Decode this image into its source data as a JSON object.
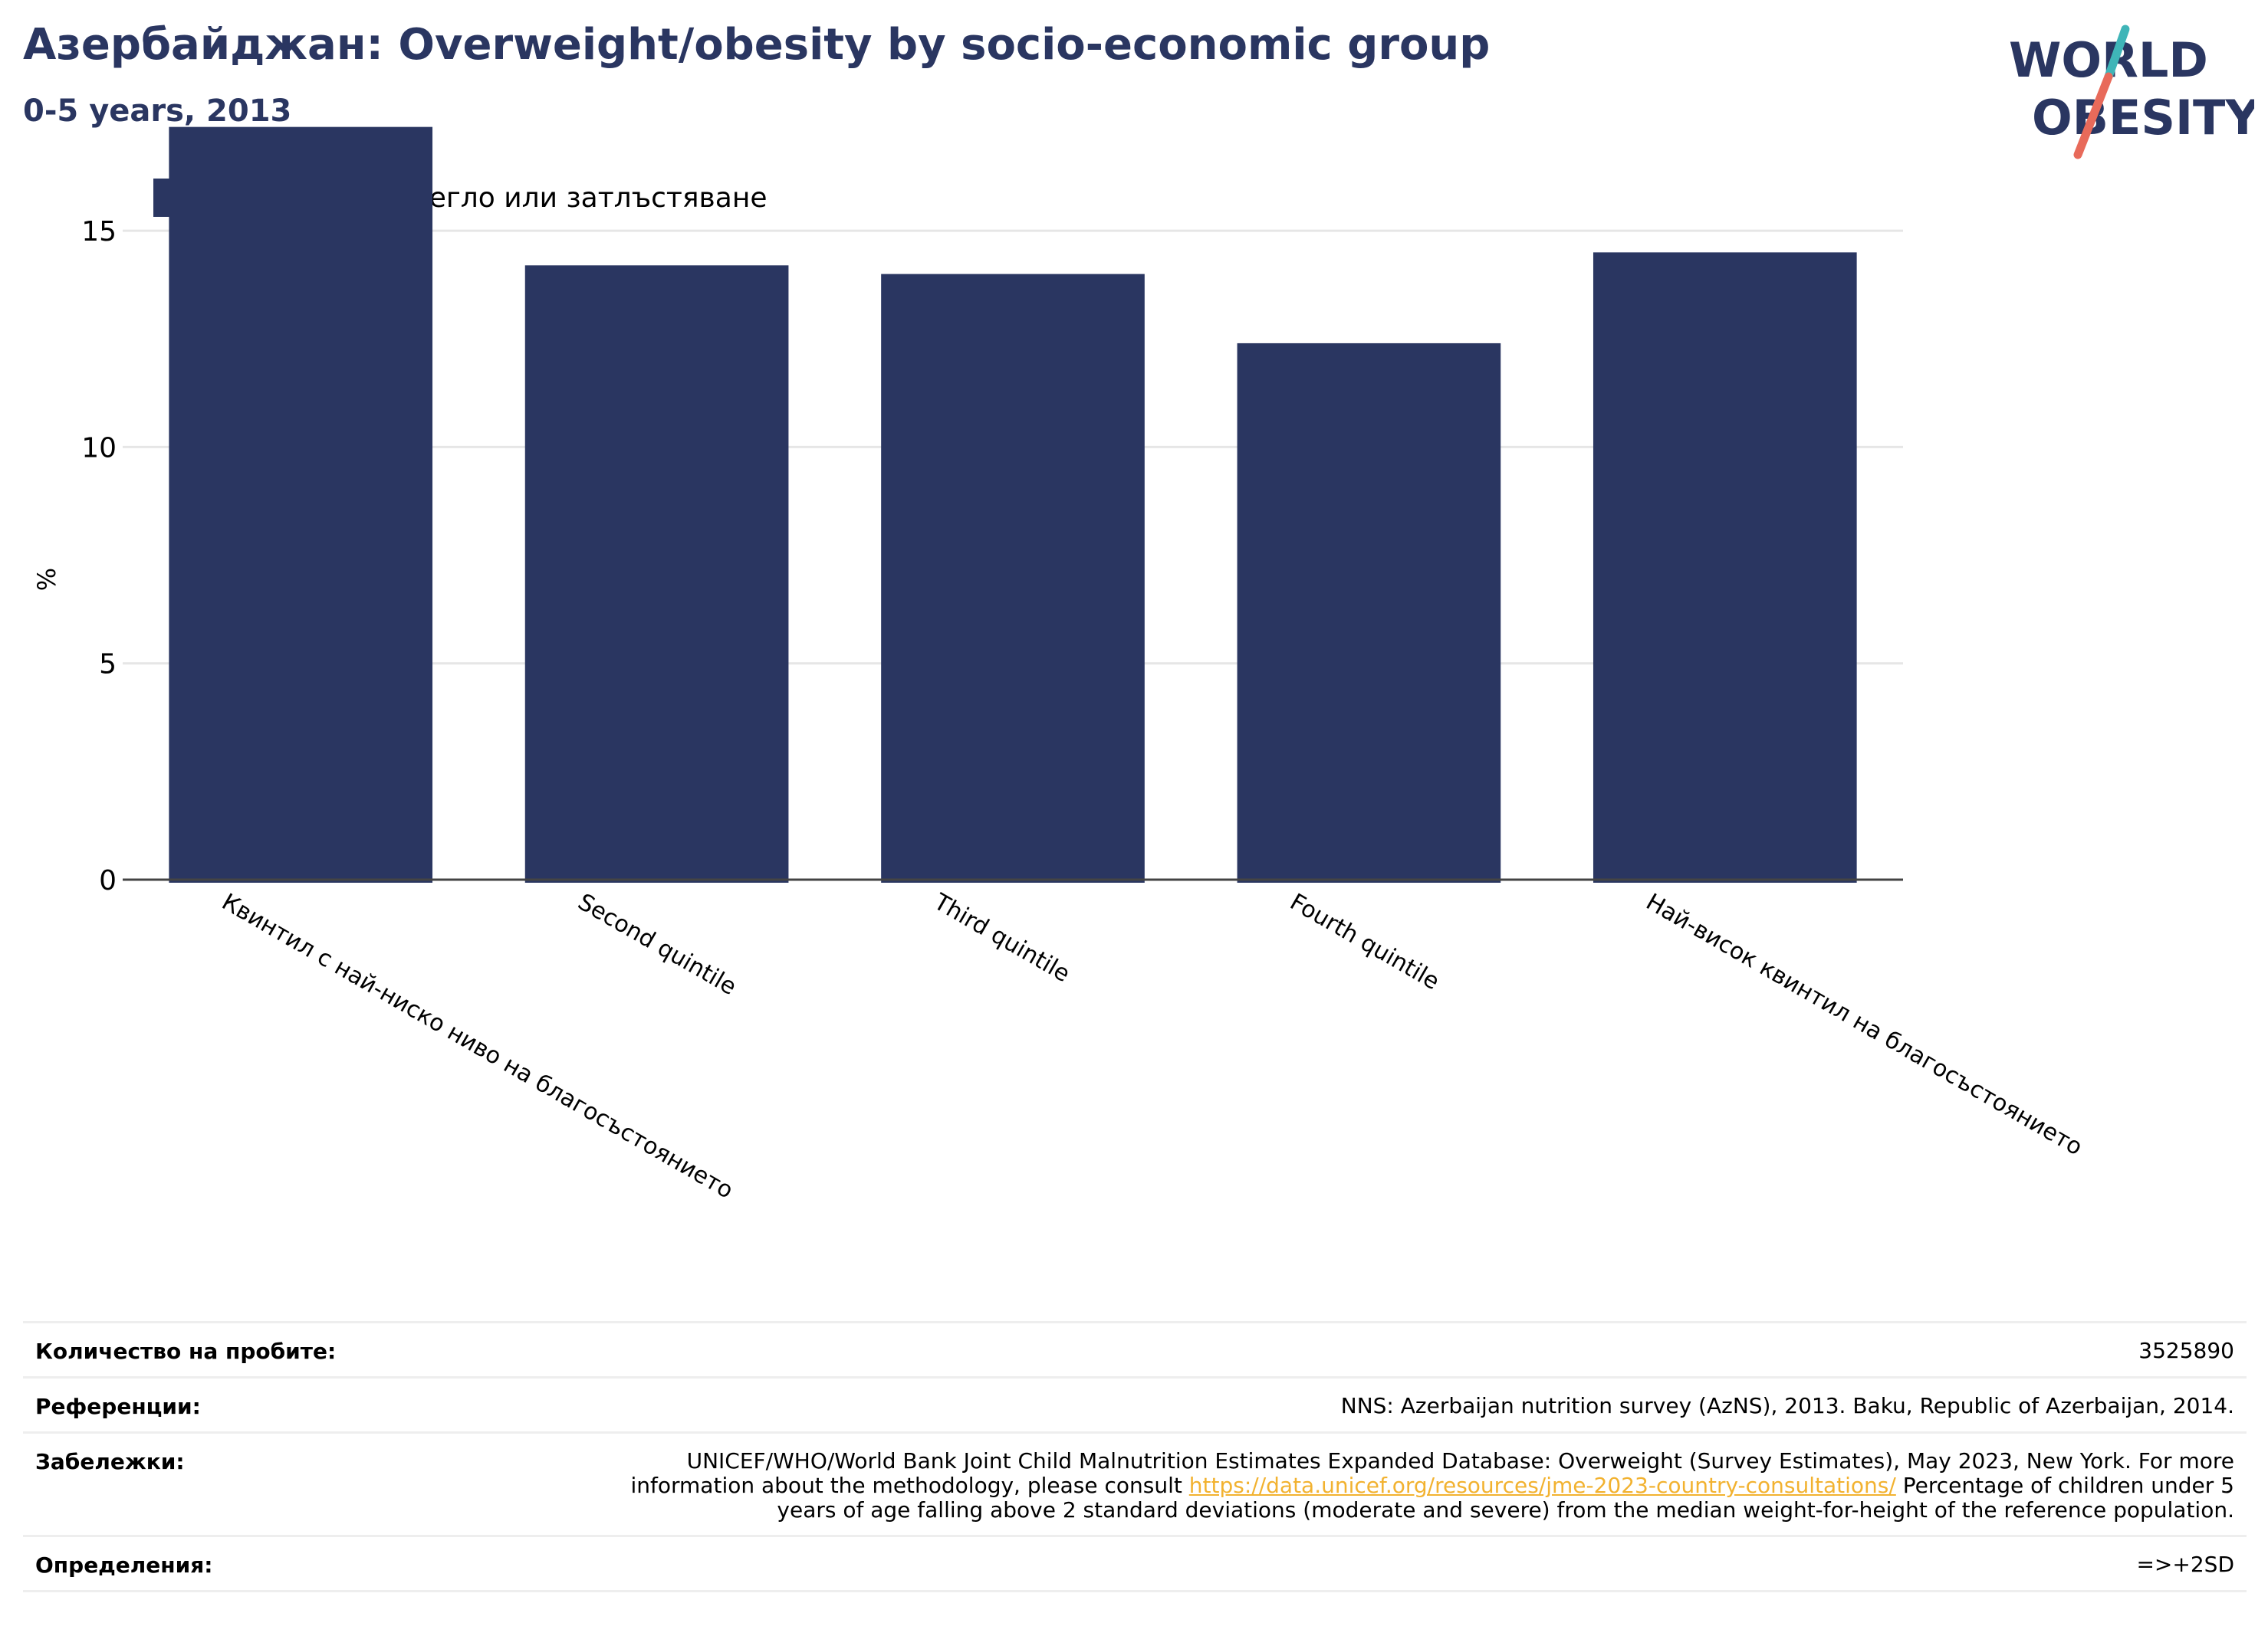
{
  "header": {
    "title": "Азербайджан: Overweight/obesity by socio-economic group",
    "subtitle": "0-5 years, 2013"
  },
  "logo": {
    "line1": "WORLD",
    "line2": "OBESITY",
    "text_color": "#2a3661",
    "accent_teal": "#3fb5b8",
    "accent_coral": "#e86a5a"
  },
  "colors": {
    "bar": "#2a3661",
    "grid": "#e6e6e6",
    "axis": "#444444",
    "link": "#f2b230"
  },
  "chart_data": {
    "type": "bar",
    "ylabel": "%",
    "ylim": [
      0,
      17.5
    ],
    "yticks": [
      0,
      5,
      10,
      15
    ],
    "grid": true,
    "legend": {
      "position": "top-left",
      "entries": [
        "Наднормено тегло или затлъстяване"
      ]
    },
    "categories": [
      "Квинтил с най-ниско ниво на благосъстоянието",
      "Second quintile",
      "Third quintile",
      "Fourth quintile",
      "Най-висок квинтил на благосъстоянието"
    ],
    "series": [
      {
        "name": "Наднормено тегло или затлъстяване",
        "values": [
          17.4,
          14.2,
          14.0,
          12.4,
          14.5
        ]
      }
    ]
  },
  "footer": {
    "rows": [
      {
        "label": "Количество на пробите:",
        "value": "3525890"
      },
      {
        "label": "Референции:",
        "value": "NNS: Azerbaijan nutrition survey (AzNS), 2013. Baku, Republic of Azerbaijan, 2014."
      },
      {
        "label": "Забележки:",
        "value_before": "UNICEF/WHO/World Bank Joint Child Malnutrition Estimates Expanded Database: Overweight (Survey Estimates), May 2023, New York. For more information about the methodology, please consult ",
        "link": "https://data.unicef.org/resources/jme-2023-country-consultations/",
        "value_after": " Percentage of children under 5 years of age falling above 2 standard deviations (moderate and severe) from the median weight-for-height of the reference population."
      },
      {
        "label": "Определения:",
        "value": "=>+2SD"
      }
    ]
  }
}
